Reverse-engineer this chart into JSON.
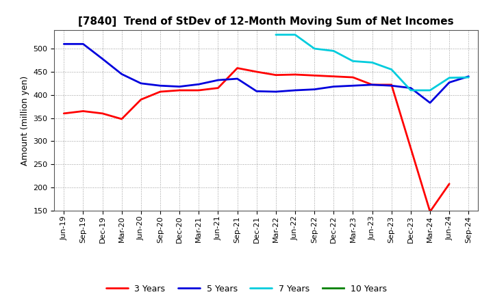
{
  "title": "[7840]  Trend of StDev of 12-Month Moving Sum of Net Incomes",
  "ylabel": "Amount (million yen)",
  "x_labels": [
    "Jun-19",
    "Sep-19",
    "Dec-19",
    "Mar-20",
    "Jun-20",
    "Sep-20",
    "Dec-20",
    "Mar-21",
    "Jun-21",
    "Sep-21",
    "Dec-21",
    "Mar-22",
    "Jun-22",
    "Sep-22",
    "Dec-22",
    "Mar-23",
    "Jun-23",
    "Sep-23",
    "Dec-23",
    "Mar-24",
    "Jun-24",
    "Sep-24"
  ],
  "ylim": [
    150,
    540
  ],
  "yticks": [
    150,
    200,
    250,
    300,
    350,
    400,
    450,
    500
  ],
  "series": [
    {
      "name": "3 Years",
      "color": "#ff0000",
      "data_x": [
        0,
        1,
        2,
        3,
        4,
        5,
        6,
        7,
        8,
        9,
        10,
        11,
        12,
        13,
        14,
        15,
        16,
        17,
        18,
        19,
        20
      ],
      "data_y": [
        360,
        365,
        360,
        348,
        390,
        407,
        410,
        410,
        415,
        458,
        450,
        443,
        444,
        442,
        440,
        438,
        422,
        422,
        285,
        148,
        208
      ]
    },
    {
      "name": "5 Years",
      "color": "#0000dd",
      "data_x": [
        0,
        1,
        2,
        3,
        4,
        5,
        6,
        7,
        8,
        9,
        10,
        11,
        12,
        13,
        14,
        15,
        16,
        17,
        18,
        19,
        20,
        21
      ],
      "data_y": [
        510,
        510,
        478,
        445,
        425,
        420,
        418,
        423,
        432,
        435,
        408,
        407,
        410,
        412,
        418,
        420,
        422,
        420,
        415,
        383,
        427,
        440
      ]
    },
    {
      "name": "7 Years",
      "color": "#00ccdd",
      "data_x": [
        11,
        12,
        13,
        14,
        15,
        16,
        17,
        18,
        19,
        20,
        21
      ],
      "data_y": [
        530,
        530,
        500,
        495,
        473,
        470,
        455,
        410,
        410,
        437,
        438
      ]
    },
    {
      "name": "10 Years",
      "color": "#008000",
      "data_x": [],
      "data_y": []
    }
  ],
  "background_color": "#ffffff",
  "grid_color": "#999999",
  "title_fontsize": 11,
  "ylabel_fontsize": 9,
  "tick_fontsize": 8,
  "legend_fontsize": 9,
  "linewidth": 2.0
}
